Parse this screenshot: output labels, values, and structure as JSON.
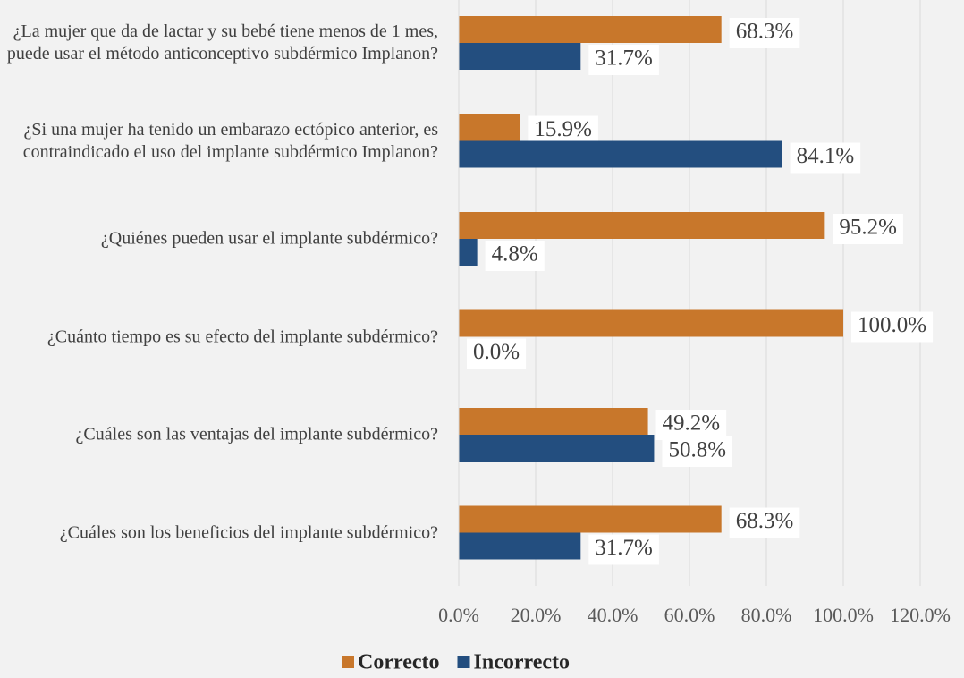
{
  "chart_data": {
    "type": "hbar",
    "categories": [
      "¿La mujer que da de lactar y su bebé tiene menos de 1 mes, puede usar el método anticonceptivo subdérmico Implanon?",
      "¿Si una mujer ha tenido un embarazo ectópico anterior, es contraindicado el uso del implante subdérmico Implanon?",
      "¿Quiénes pueden usar el implante subdérmico?",
      "¿Cuánto tiempo es su efecto del implante subdérmico?",
      "¿Cuáles son las ventajas del implante subdérmico?",
      "¿Cuáles son los beneficios del implante subdérmico?"
    ],
    "series": [
      {
        "name": "Correcto",
        "color": "#c8772b",
        "values": [
          68.3,
          15.9,
          95.2,
          100,
          49.2,
          68.3
        ],
        "value_labels": [
          "68.3%",
          "15.9%",
          "95.2%",
          "100.0%",
          "49.2%",
          "68.3%"
        ]
      },
      {
        "name": "Incorrecto",
        "color": "#234e7f",
        "values": [
          31.7,
          84.1,
          4.8,
          0,
          50.8,
          31.7
        ],
        "value_labels": [
          "31.7%",
          "84.1%",
          "4.8%",
          "0.0%",
          "50.8%",
          "31.7%"
        ]
      }
    ],
    "xlim": [
      0,
      120
    ],
    "xticks": [
      {
        "value": 0,
        "label": "0.0%"
      },
      {
        "value": 20,
        "label": "20.0%"
      },
      {
        "value": 40,
        "label": "40.0%"
      },
      {
        "value": 60,
        "label": "60.0%"
      },
      {
        "value": 80,
        "label": "80.0%"
      },
      {
        "value": 100,
        "label": "100.0%"
      },
      {
        "value": 120,
        "label": "120.0%"
      }
    ],
    "grid": true,
    "legend": "bottom"
  }
}
